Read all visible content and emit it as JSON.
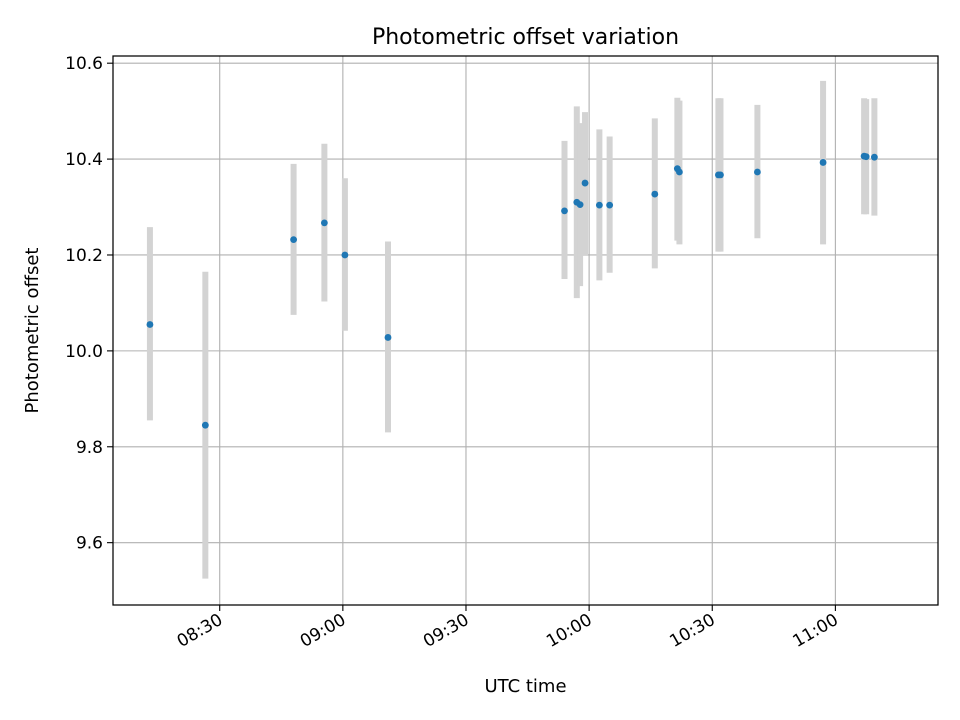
{
  "chart_data": {
    "type": "scatter",
    "title": "Photometric offset variation",
    "xlabel": "UTC time",
    "ylabel": "Photometric offset",
    "xlim": [
      "08:04",
      "11:25"
    ],
    "ylim": [
      9.47,
      10.615
    ],
    "grid": true,
    "x_ticks": [
      "08:30",
      "09:00",
      "09:30",
      "10:00",
      "10:30",
      "11:00"
    ],
    "y_ticks": [
      9.6,
      9.8,
      10.0,
      10.2,
      10.4,
      10.6
    ],
    "y_tick_labels": [
      "9.6",
      "9.8",
      "10.0",
      "10.2",
      "10.4",
      "10.6"
    ],
    "colors": {
      "points": "#1f77b4",
      "errorbars": "#d3d3d3",
      "grid": "#b0b0b0"
    },
    "series": [
      {
        "points": [
          {
            "x": "08:13",
            "y": 10.055,
            "lo": 9.855,
            "hi": 10.258
          },
          {
            "x": "08:26.5",
            "y": 9.845,
            "lo": 9.525,
            "hi": 10.165
          },
          {
            "x": "08:48",
            "y": 10.232,
            "lo": 10.075,
            "hi": 10.39
          },
          {
            "x": "08:55.5",
            "y": 10.267,
            "lo": 10.103,
            "hi": 10.432
          },
          {
            "x": "09:00.5",
            "y": 10.2,
            "lo": 10.042,
            "hi": 10.36
          },
          {
            "x": "09:11",
            "y": 10.028,
            "lo": 9.83,
            "hi": 10.228
          },
          {
            "x": "09:54",
            "y": 10.292,
            "lo": 10.15,
            "hi": 10.438
          },
          {
            "x": "09:57",
            "y": 10.31,
            "lo": 10.11,
            "hi": 10.51
          },
          {
            "x": "09:57.8",
            "y": 10.305,
            "lo": 10.135,
            "hi": 10.475
          },
          {
            "x": "09:59",
            "y": 10.35,
            "lo": 10.2,
            "hi": 10.498
          },
          {
            "x": "10:02.5",
            "y": 10.304,
            "lo": 10.147,
            "hi": 10.462
          },
          {
            "x": "10:05",
            "y": 10.304,
            "lo": 10.163,
            "hi": 10.447
          },
          {
            "x": "10:16",
            "y": 10.327,
            "lo": 10.172,
            "hi": 10.485
          },
          {
            "x": "10:21.5",
            "y": 10.38,
            "lo": 10.23,
            "hi": 10.528
          },
          {
            "x": "10:22",
            "y": 10.373,
            "lo": 10.222,
            "hi": 10.522
          },
          {
            "x": "10:31.5",
            "y": 10.367,
            "lo": 10.207,
            "hi": 10.527
          },
          {
            "x": "10:32",
            "y": 10.367,
            "lo": 10.207,
            "hi": 10.527
          },
          {
            "x": "10:41",
            "y": 10.373,
            "lo": 10.235,
            "hi": 10.513
          },
          {
            "x": "10:57",
            "y": 10.393,
            "lo": 10.222,
            "hi": 10.563
          },
          {
            "x": "11:07",
            "y": 10.406,
            "lo": 10.285,
            "hi": 10.527
          },
          {
            "x": "11:07.5",
            "y": 10.405,
            "lo": 10.285,
            "hi": 10.525
          },
          {
            "x": "11:09.5",
            "y": 10.404,
            "lo": 10.282,
            "hi": 10.527
          }
        ]
      }
    ]
  }
}
